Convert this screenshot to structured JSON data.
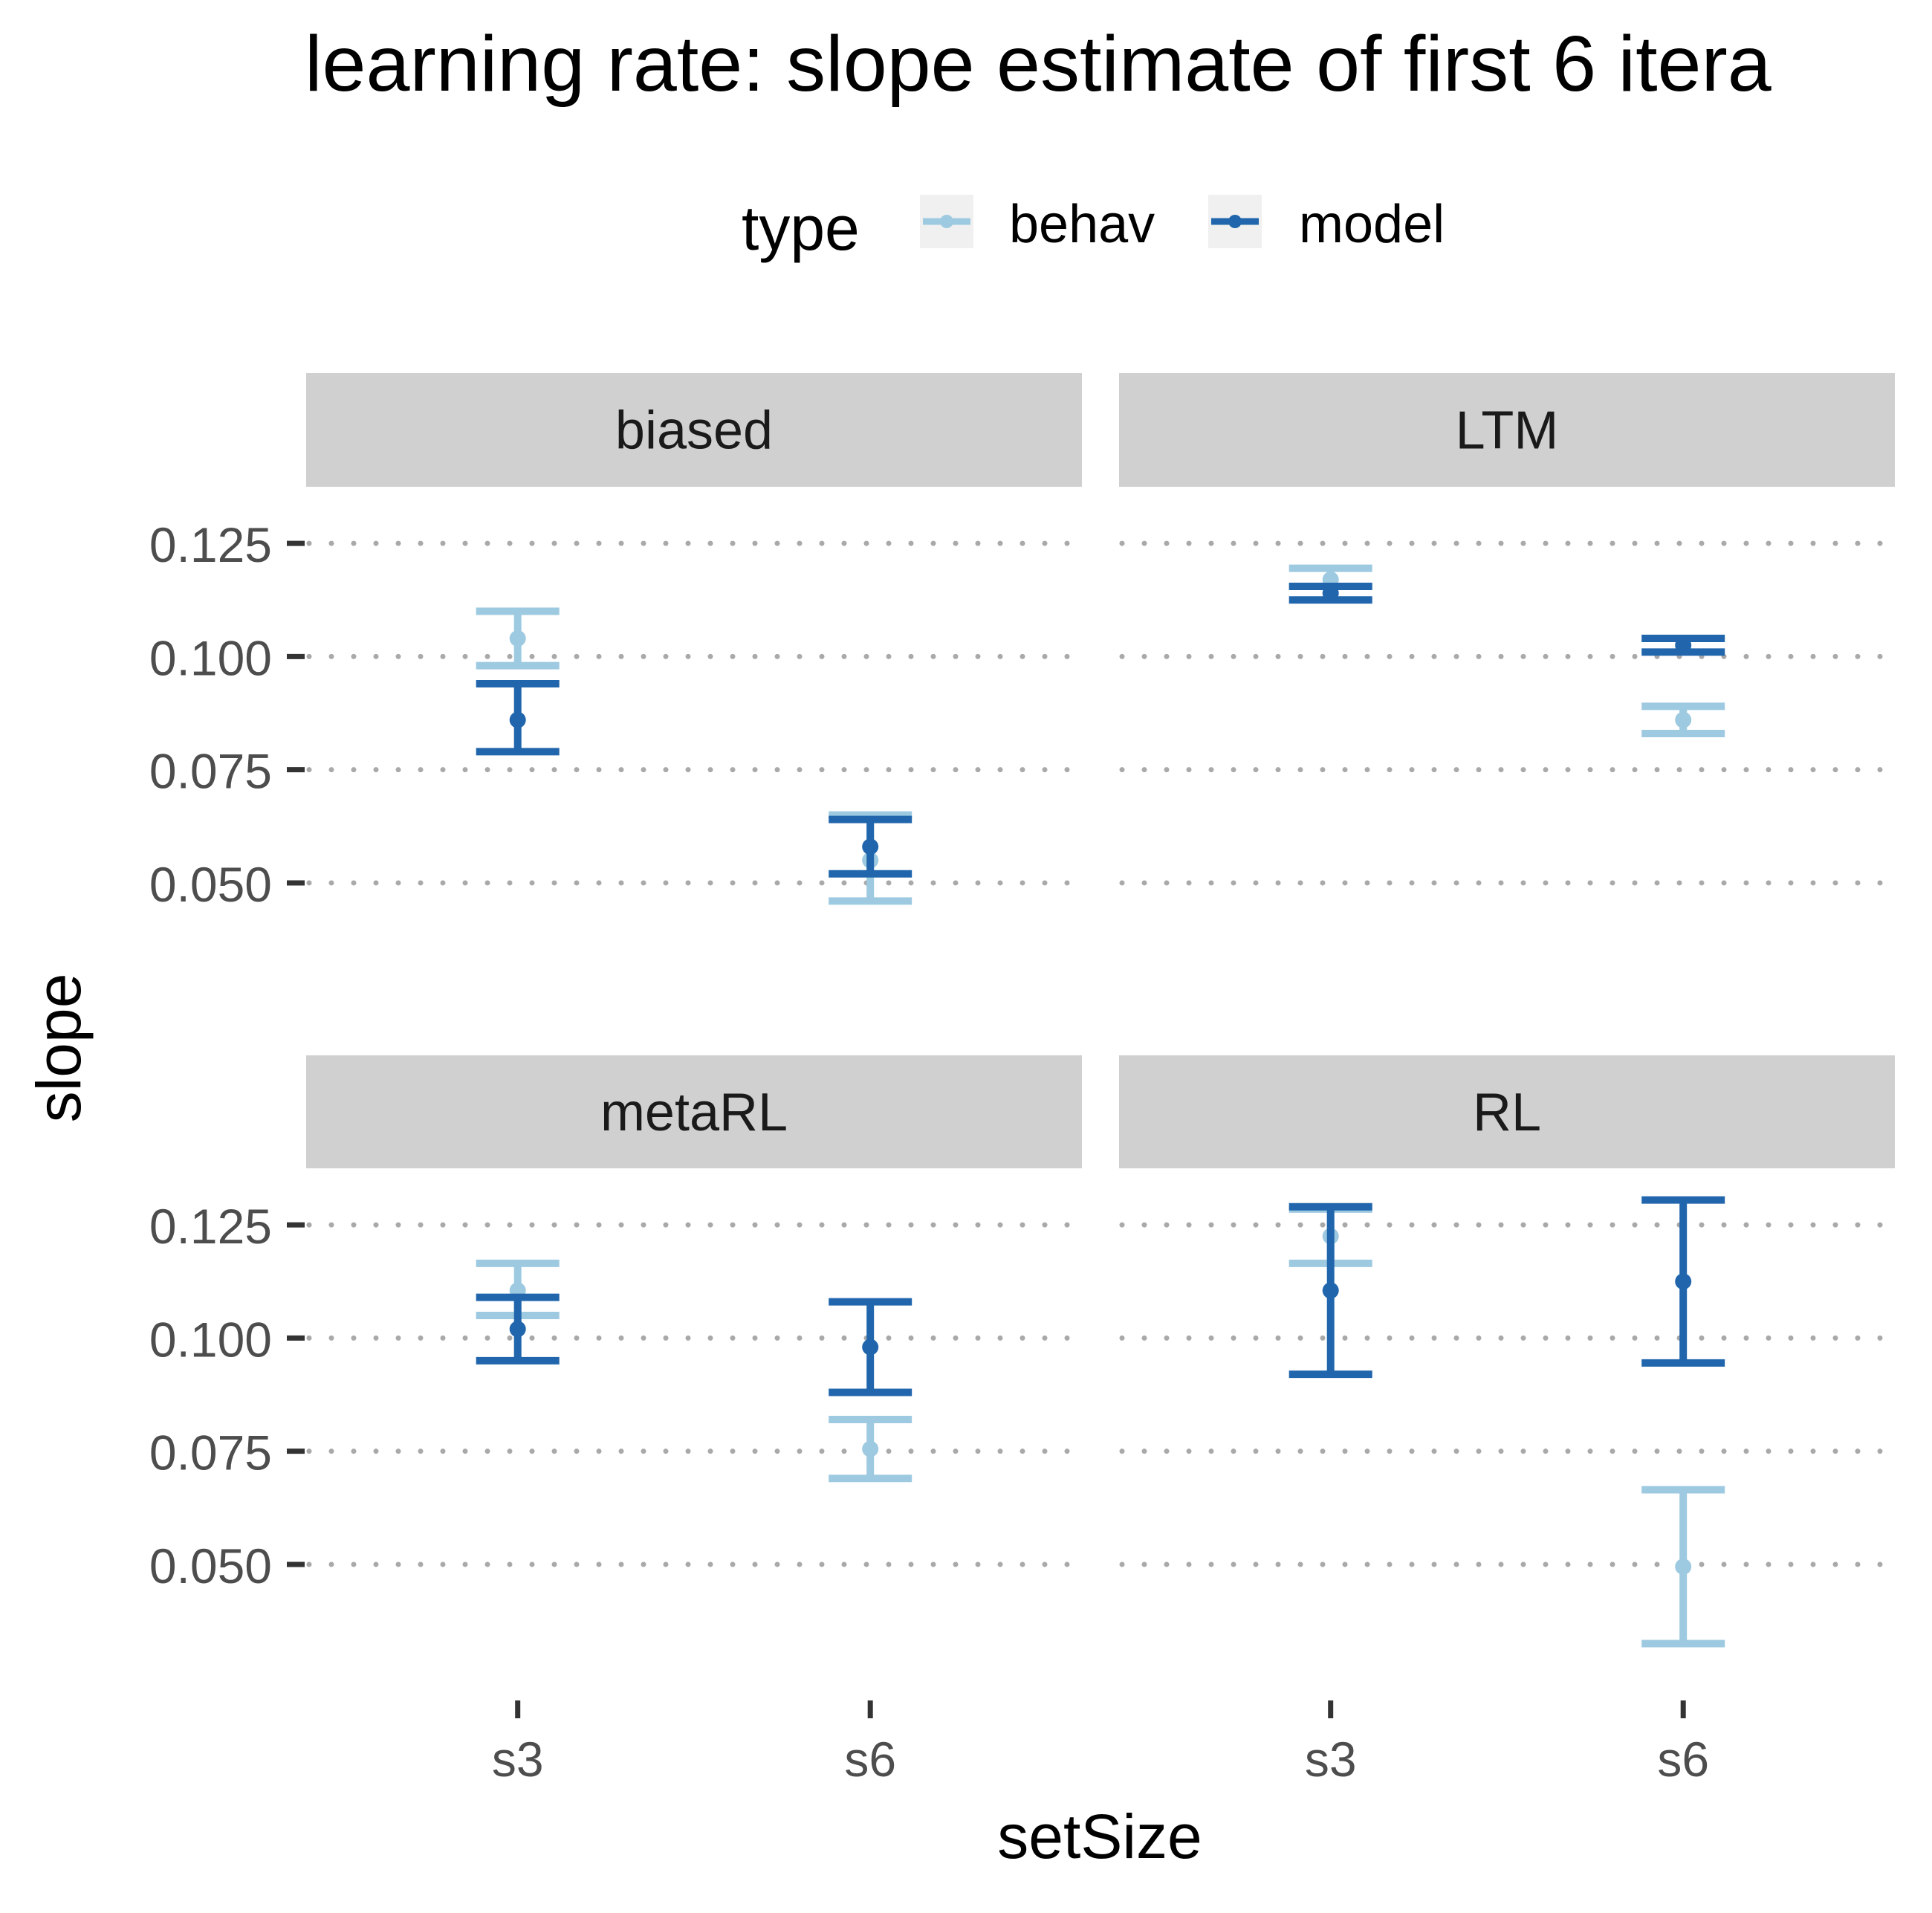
{
  "chart_data": {
    "type": "errorbar",
    "title": "learning rate: slope estimate of first 6 itera",
    "xlabel": "setSize",
    "ylabel": "slope",
    "legend": {
      "title": "type",
      "position": "top",
      "entries": [
        {
          "name": "behav",
          "color": "#9ecae1"
        },
        {
          "name": "model",
          "color": "#2166ac"
        }
      ]
    },
    "ylim": [
      0.0275,
      0.1375
    ],
    "yticks": [
      0.05,
      0.075,
      0.1,
      0.125
    ],
    "ytick_labels": [
      "0.050",
      "0.075",
      "0.100",
      "0.125"
    ],
    "categories": [
      "s3",
      "s6"
    ],
    "grid": "major-y-dotted",
    "facets": [
      {
        "label": "biased",
        "series": [
          {
            "name": "behav",
            "points": [
              {
                "x": "s3",
                "y": 0.104,
                "ymin": 0.098,
                "ymax": 0.11
              },
              {
                "x": "s6",
                "y": 0.055,
                "ymin": 0.046,
                "ymax": 0.065
              }
            ]
          },
          {
            "name": "model",
            "points": [
              {
                "x": "s3",
                "y": 0.086,
                "ymin": 0.079,
                "ymax": 0.094
              },
              {
                "x": "s6",
                "y": 0.058,
                "ymin": 0.052,
                "ymax": 0.064
              }
            ]
          }
        ]
      },
      {
        "label": "LTM",
        "series": [
          {
            "name": "behav",
            "points": [
              {
                "x": "s3",
                "y": 0.117,
                "ymin": 0.1155,
                "ymax": 0.1195
              },
              {
                "x": "s6",
                "y": 0.086,
                "ymin": 0.083,
                "ymax": 0.089
              }
            ]
          },
          {
            "name": "model",
            "points": [
              {
                "x": "s3",
                "y": 0.114,
                "ymin": 0.1125,
                "ymax": 0.1155
              },
              {
                "x": "s6",
                "y": 0.1025,
                "ymin": 0.101,
                "ymax": 0.104
              }
            ]
          }
        ]
      },
      {
        "label": "metaRL",
        "series": [
          {
            "name": "behav",
            "points": [
              {
                "x": "s3",
                "y": 0.1105,
                "ymin": 0.105,
                "ymax": 0.1165
              },
              {
                "x": "s6",
                "y": 0.0755,
                "ymin": 0.069,
                "ymax": 0.082
              }
            ]
          },
          {
            "name": "model",
            "points": [
              {
                "x": "s3",
                "y": 0.102,
                "ymin": 0.095,
                "ymax": 0.109
              },
              {
                "x": "s6",
                "y": 0.098,
                "ymin": 0.088,
                "ymax": 0.108
              }
            ]
          }
        ]
      },
      {
        "label": "RL",
        "series": [
          {
            "name": "behav",
            "points": [
              {
                "x": "s3",
                "y": 0.1225,
                "ymin": 0.1165,
                "ymax": 0.1285
              },
              {
                "x": "s6",
                "y": 0.0495,
                "ymin": 0.0325,
                "ymax": 0.0665
              }
            ]
          },
          {
            "name": "model",
            "points": [
              {
                "x": "s3",
                "y": 0.1105,
                "ymin": 0.092,
                "ymax": 0.129
              },
              {
                "x": "s6",
                "y": 0.1125,
                "ymin": 0.0945,
                "ymax": 0.1305
              }
            ]
          }
        ]
      }
    ]
  }
}
